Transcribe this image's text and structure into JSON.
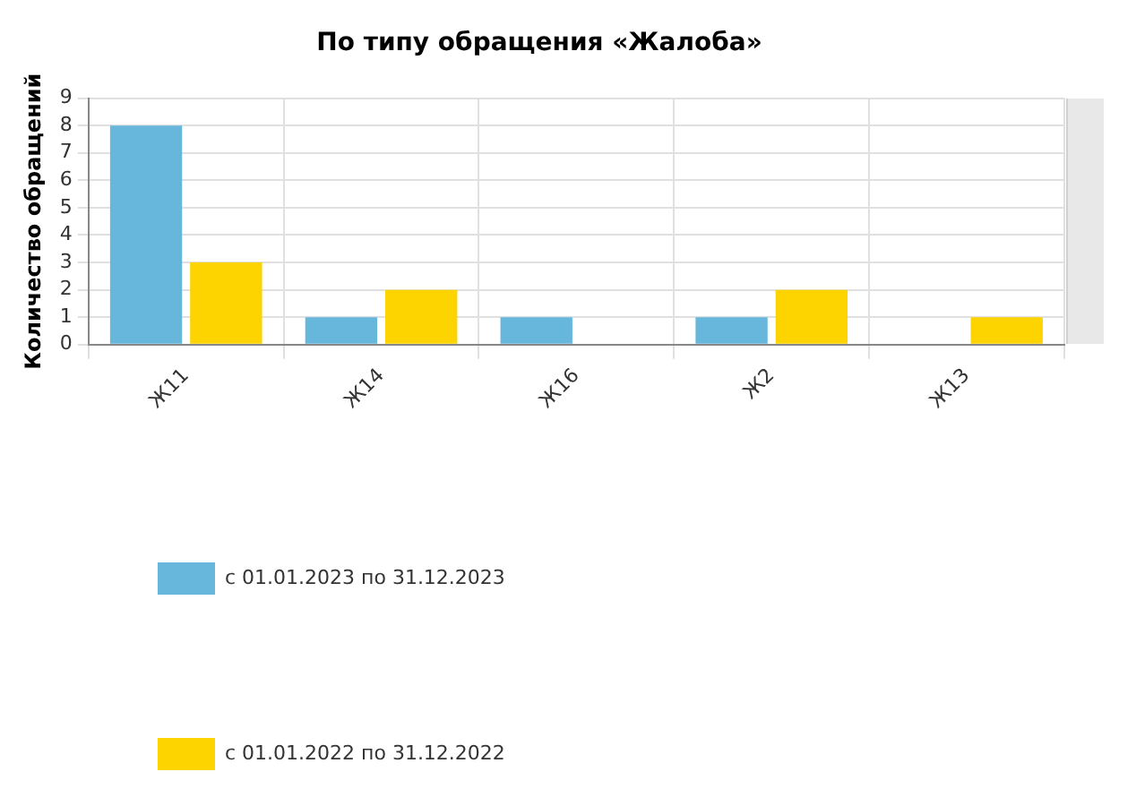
{
  "chart_data": {
    "type": "bar",
    "title": "По типу обращения «Жалоба»",
    "ylabel": "Количество обращений",
    "categories": [
      "Ж11",
      "Ж14",
      "Ж16",
      "Ж2",
      "Ж13"
    ],
    "series": [
      {
        "name": "с 01.01.2023 по 31.12.2023",
        "color": "#67b7dc",
        "values": [
          8,
          1,
          1,
          1,
          0
        ]
      },
      {
        "name": "с 01.01.2022 по 31.12.2022",
        "color": "#fdd400",
        "values": [
          3,
          2,
          0,
          2,
          1
        ]
      }
    ],
    "ylim": [
      0,
      9
    ],
    "yticks": [
      0,
      1,
      2,
      3,
      4,
      5,
      6,
      7,
      8,
      9
    ],
    "grid": true,
    "legend": "bottom"
  }
}
